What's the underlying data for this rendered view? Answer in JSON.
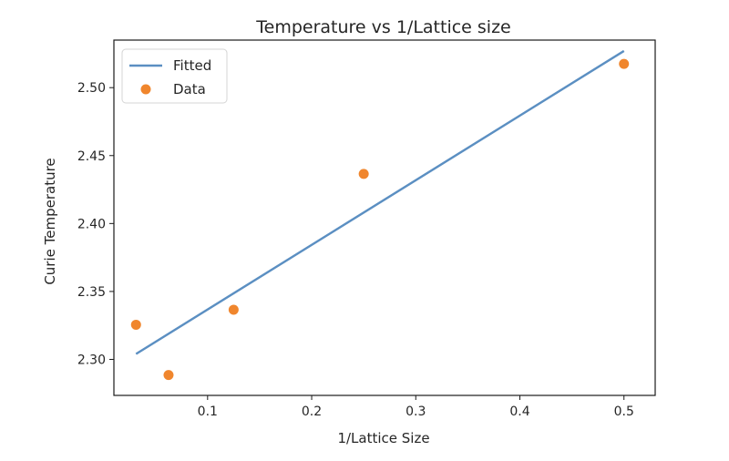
{
  "chart_data": {
    "type": "scatter",
    "title": "Temperature vs 1/Lattice size",
    "xlabel": "1/Lattice Size",
    "ylabel": "Curie Temperature",
    "xlim": [
      0.01,
      0.53
    ],
    "ylim": [
      2.2735,
      2.535
    ],
    "xticks": [
      0.1,
      0.2,
      0.3,
      0.4,
      0.5
    ],
    "xtick_labels": [
      "0.1",
      "0.2",
      "0.3",
      "0.4",
      "0.5"
    ],
    "yticks": [
      2.3,
      2.35,
      2.4,
      2.45,
      2.5
    ],
    "ytick_labels": [
      "2.30",
      "2.35",
      "2.40",
      "2.45",
      "2.50"
    ],
    "grid": false,
    "legend_position": "top-left",
    "series": [
      {
        "name": "Fitted",
        "kind": "line",
        "color": "#5b8fc2",
        "x": [
          0.03125,
          0.5
        ],
        "y": [
          2.304,
          2.527
        ]
      },
      {
        "name": "Data",
        "kind": "scatter",
        "color": "#f0862d",
        "x": [
          0.03125,
          0.0625,
          0.125,
          0.25,
          0.5
        ],
        "y": [
          2.3255,
          2.2885,
          2.3365,
          2.4365,
          2.5175
        ]
      }
    ]
  }
}
